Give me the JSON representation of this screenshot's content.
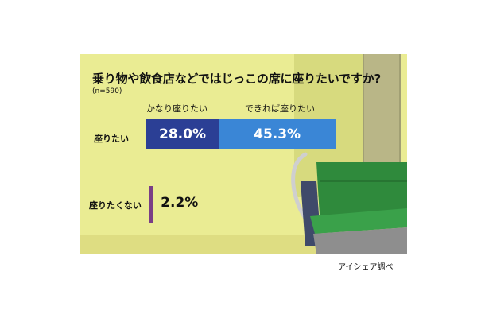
{
  "chart_data": {
    "type": "bar",
    "title": "乗り物や飲食店などではじっこの席に座りたいですか?",
    "subtitle": "(n=590)",
    "series": [
      {
        "name": "かなり座りたい",
        "color": "#2b3f95"
      },
      {
        "name": "できれば座りたい",
        "color": "#3a86d6"
      }
    ],
    "rows": [
      {
        "label": "座りたい",
        "values": [
          28.0,
          45.3
        ],
        "value_labels": [
          "28.0%",
          "45.3%"
        ]
      },
      {
        "label": "座りたくない",
        "values": [
          2.2
        ],
        "value_labels": [
          "2.2%"
        ],
        "color": "#7a3e86"
      }
    ],
    "unit": "%",
    "source": "アイシェア調べ"
  }
}
